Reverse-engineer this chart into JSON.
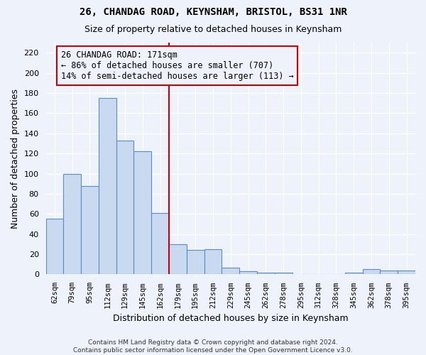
{
  "title1": "26, CHANDAG ROAD, KEYNSHAM, BRISTOL, BS31 1NR",
  "title2": "Size of property relative to detached houses in Keynsham",
  "xlabel": "Distribution of detached houses by size in Keynsham",
  "ylabel": "Number of detached properties",
  "categories": [
    "62sqm",
    "79sqm",
    "95sqm",
    "112sqm",
    "129sqm",
    "145sqm",
    "162sqm",
    "179sqm",
    "195sqm",
    "212sqm",
    "229sqm",
    "245sqm",
    "262sqm",
    "278sqm",
    "295sqm",
    "312sqm",
    "328sqm",
    "345sqm",
    "362sqm",
    "378sqm",
    "395sqm"
  ],
  "values": [
    55,
    100,
    88,
    175,
    133,
    122,
    61,
    30,
    24,
    25,
    7,
    3,
    2,
    2,
    0,
    0,
    0,
    2,
    5,
    4,
    4
  ],
  "bar_color": "#c9d9f0",
  "bar_edge_color": "#5b8cc8",
  "vline_x": 6.5,
  "vline_color": "#cc0000",
  "annotation_text": "26 CHANDAG ROAD: 171sqm\n← 86% of detached houses are smaller (707)\n14% of semi-detached houses are larger (113) →",
  "annotation_fontsize": 8.5,
  "ylim": [
    0,
    230
  ],
  "yticks": [
    0,
    20,
    40,
    60,
    80,
    100,
    120,
    140,
    160,
    180,
    200,
    220
  ],
  "footer_text": "Contains HM Land Registry data © Crown copyright and database right 2024.\nContains public sector information licensed under the Open Government Licence v3.0.",
  "background_color": "#eef2fb",
  "grid_color": "#ffffff"
}
